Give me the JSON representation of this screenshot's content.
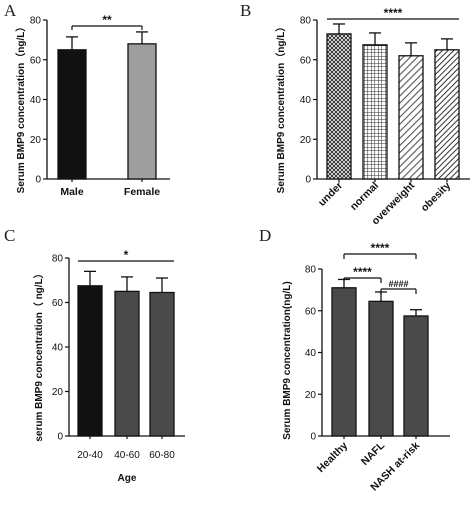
{
  "chart_data": [
    {
      "panel": "A",
      "type": "bar",
      "categories": [
        "Male",
        "Female"
      ],
      "values": [
        65,
        68
      ],
      "errors": [
        6.5,
        6
      ],
      "ylabel": "Serum BMP9 concentration（ng/L）",
      "xlabel": "",
      "ylim": [
        0,
        80
      ],
      "yticks": [
        0,
        20,
        40,
        60,
        80
      ],
      "bar_styles": [
        "black",
        "gray"
      ],
      "significance": [
        {
          "from": 0,
          "to": 1,
          "label": "**"
        }
      ]
    },
    {
      "panel": "B",
      "type": "bar",
      "categories": [
        "under",
        "normal",
        "overweight",
        "obesity"
      ],
      "values": [
        73,
        67.5,
        62,
        65
      ],
      "errors": [
        5,
        6,
        6.5,
        5.5
      ],
      "ylabel": "Serum BMP9 concentration（ng/L）",
      "xlabel": "",
      "ylim": [
        0,
        80
      ],
      "yticks": [
        0,
        20,
        40,
        60,
        80
      ],
      "bar_styles": [
        "crosshatch",
        "grid",
        "diagonal",
        "diagonal-dense"
      ],
      "significance": [
        {
          "from": 0,
          "to": 3,
          "label": "****"
        }
      ]
    },
    {
      "panel": "C",
      "type": "bar",
      "categories": [
        "20-40",
        "40-60",
        "60-80"
      ],
      "values": [
        67.5,
        65,
        64.5
      ],
      "errors": [
        6.5,
        6.5,
        6.5
      ],
      "ylabel": "serum BMP9 concentration（ ng/L）",
      "xlabel": "Age",
      "ylim": [
        0,
        80
      ],
      "yticks": [
        0,
        20,
        40,
        60,
        80
      ],
      "bar_styles": [
        "black",
        "darkgray",
        "darkgray"
      ],
      "significance": [
        {
          "from": 0,
          "to": 2,
          "label": "*"
        }
      ]
    },
    {
      "panel": "D",
      "type": "bar",
      "categories": [
        "Healthy",
        "NAFL",
        "NASH at-risk"
      ],
      "values": [
        71,
        64.5,
        57.5
      ],
      "errors": [
        4,
        4.5,
        3
      ],
      "ylabel": "Serum BMP9 concentration(ng/L)",
      "xlabel": "",
      "ylim": [
        0,
        80
      ],
      "yticks": [
        0,
        20,
        40,
        60,
        80
      ],
      "bar_styles": [
        "darkgray",
        "darkgray",
        "darkgray"
      ],
      "significance": [
        {
          "from": 0,
          "to": 2,
          "label": "****"
        },
        {
          "from": 0,
          "to": 1,
          "label": "****"
        },
        {
          "from": 1,
          "to": 2,
          "label": "####"
        }
      ]
    }
  ]
}
